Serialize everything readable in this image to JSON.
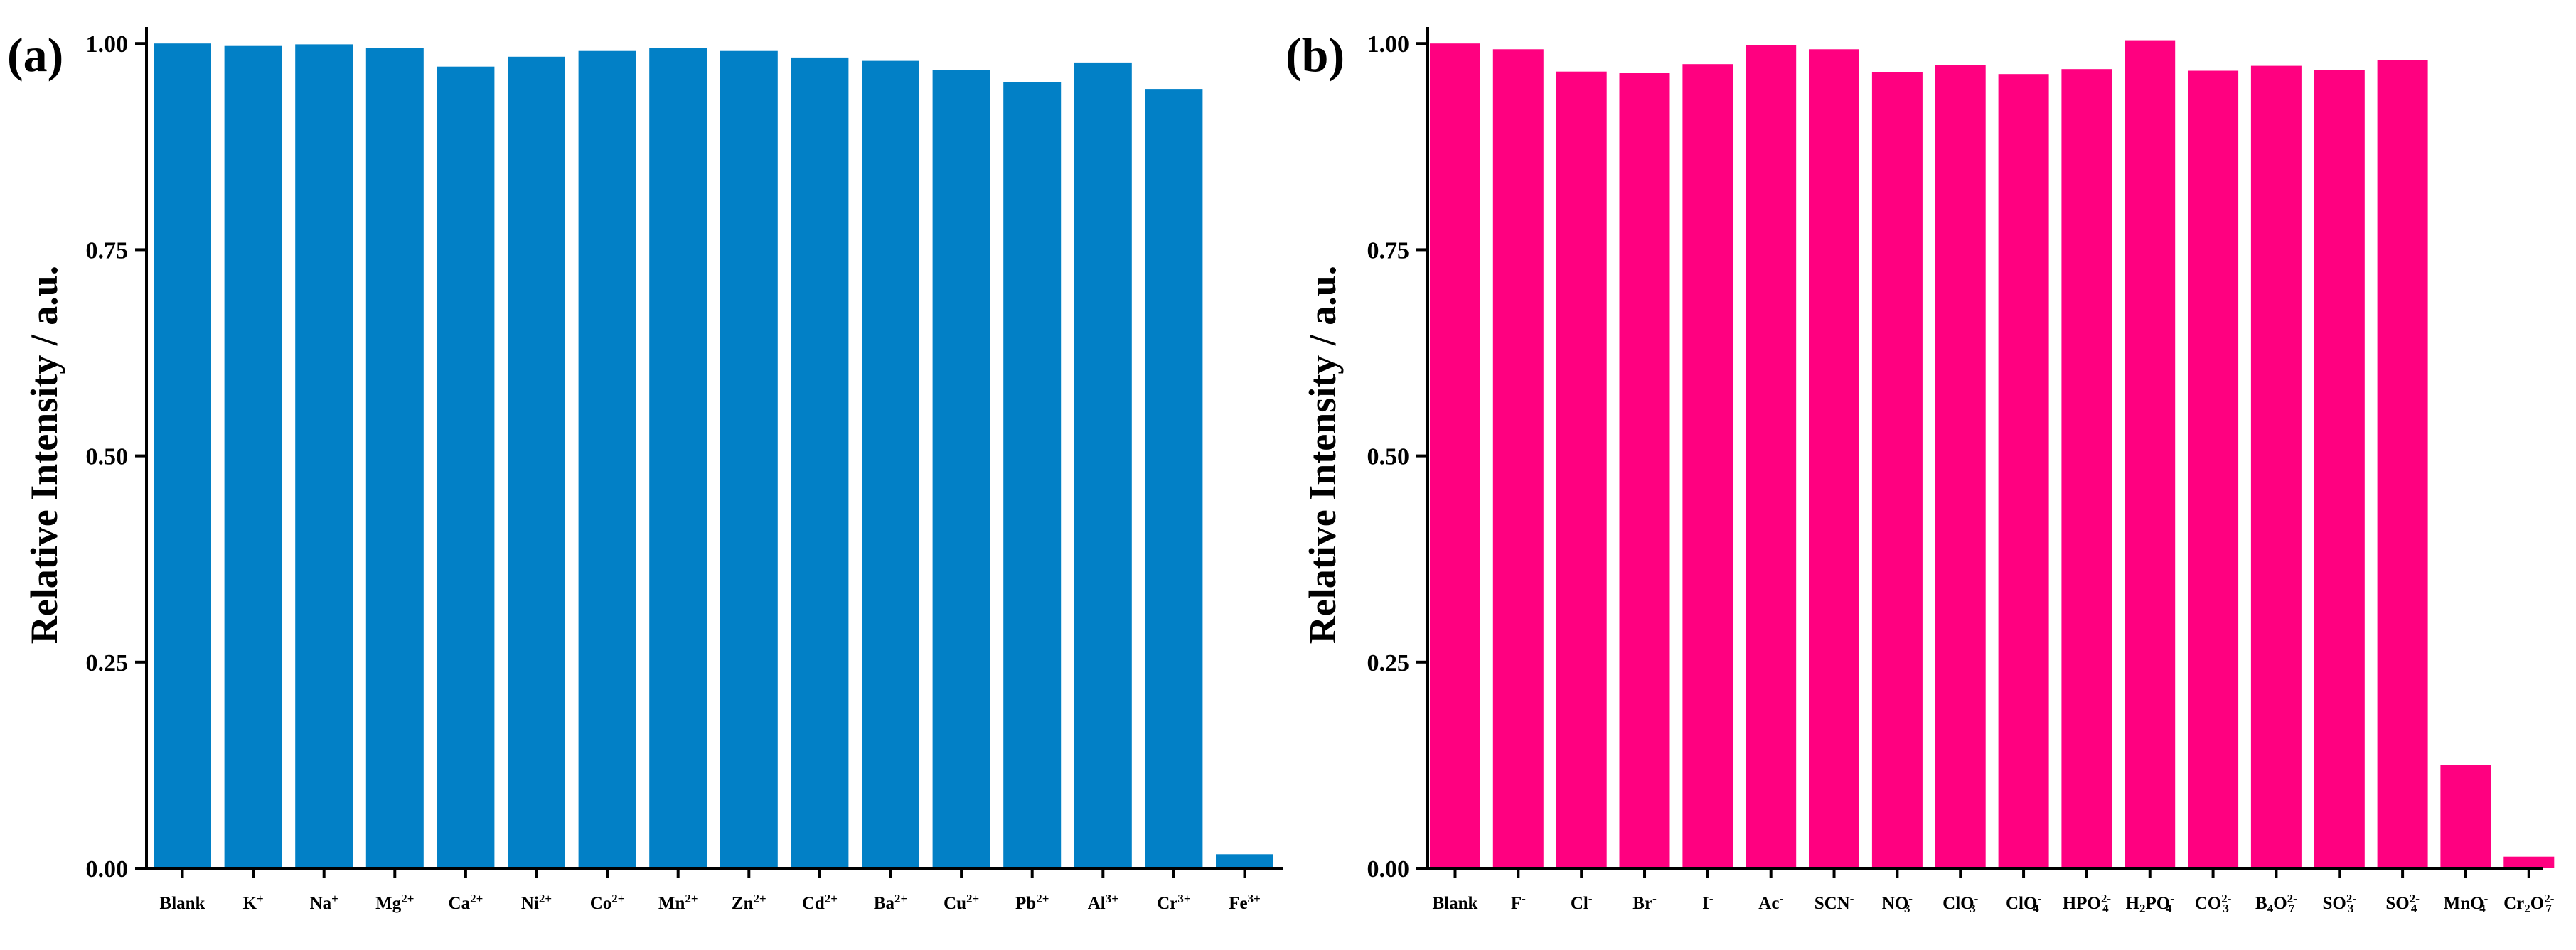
{
  "chart_data": [
    {
      "type": "bar",
      "panel_label": "(a)",
      "title": "",
      "xlabel": "",
      "ylabel": "Relative Intensity / a.u.",
      "ylim": [
        0,
        1.02
      ],
      "yticks": [
        "0.00",
        "0.25",
        "0.50",
        "0.75",
        "1.00"
      ],
      "ytick_values": [
        0,
        0.25,
        0.5,
        0.75,
        1.0
      ],
      "color": "#0280c6",
      "categories": [
        {
          "base": "Blank",
          "sup": "",
          "sub": ""
        },
        {
          "base": "K",
          "sup": "+",
          "sub": ""
        },
        {
          "base": "Na",
          "sup": "+",
          "sub": ""
        },
        {
          "base": "Mg",
          "sup": "2+",
          "sub": ""
        },
        {
          "base": "Ca",
          "sup": "2+",
          "sub": ""
        },
        {
          "base": "Ni",
          "sup": "2+",
          "sub": ""
        },
        {
          "base": "Co",
          "sup": "2+",
          "sub": ""
        },
        {
          "base": "Mn",
          "sup": "2+",
          "sub": ""
        },
        {
          "base": "Zn",
          "sup": "2+",
          "sub": ""
        },
        {
          "base": "Cd",
          "sup": "2+",
          "sub": ""
        },
        {
          "base": "Ba",
          "sup": "2+",
          "sub": ""
        },
        {
          "base": "Cu",
          "sup": "2+",
          "sub": ""
        },
        {
          "base": "Pb",
          "sup": "2+",
          "sub": ""
        },
        {
          "base": "Al",
          "sup": "3+",
          "sub": ""
        },
        {
          "base": "Cr",
          "sup": "3+",
          "sub": ""
        },
        {
          "base": "Fe",
          "sup": "3+",
          "sub": ""
        }
      ],
      "values": [
        1.0,
        0.997,
        0.999,
        0.995,
        0.972,
        0.984,
        0.991,
        0.995,
        0.991,
        0.983,
        0.979,
        0.968,
        0.953,
        0.977,
        0.945,
        0.017
      ]
    },
    {
      "type": "bar",
      "panel_label": "(b)",
      "title": "",
      "xlabel": "",
      "ylabel": "Relative Intensity / a.u.",
      "ylim": [
        0,
        1.02
      ],
      "yticks": [
        "0.00",
        "0.25",
        "0.50",
        "0.75",
        "1.00"
      ],
      "ytick_values": [
        0,
        0.25,
        0.5,
        0.75,
        1.0
      ],
      "color": "#ff0080",
      "categories": [
        {
          "base": "Blank",
          "sup": "",
          "sub": ""
        },
        {
          "base": "F",
          "sup": "-",
          "sub": ""
        },
        {
          "base": "Cl",
          "sup": "-",
          "sub": ""
        },
        {
          "base": "Br",
          "sup": "-",
          "sub": ""
        },
        {
          "base": "I",
          "sup": "-",
          "sub": ""
        },
        {
          "base": "Ac",
          "sup": "-",
          "sub": ""
        },
        {
          "base": "SCN",
          "sup": "-",
          "sub": ""
        },
        {
          "base": "NO",
          "sup": "-",
          "sub": "3"
        },
        {
          "base": "ClO",
          "sup": "-",
          "sub": "3"
        },
        {
          "base": "ClO",
          "sup": "-",
          "sub": "4"
        },
        {
          "base": "HPO",
          "sup": "2-",
          "sub": "4"
        },
        {
          "base": "H2PO",
          "sup": "-",
          "sub": "4"
        },
        {
          "base": "CO",
          "sup": "2-",
          "sub": "3"
        },
        {
          "base": "B4O",
          "sup": "2-",
          "sub": "7"
        },
        {
          "base": "SO",
          "sup": "2-",
          "sub": "3"
        },
        {
          "base": "SO",
          "sup": "2-",
          "sub": "4"
        },
        {
          "base": "MnO",
          "sup": "-",
          "sub": "4"
        },
        {
          "base": "Cr2O",
          "sup": "2-",
          "sub": "7"
        }
      ],
      "values": [
        1.0,
        0.993,
        0.966,
        0.964,
        0.975,
        0.998,
        0.993,
        0.965,
        0.974,
        0.963,
        0.969,
        1.004,
        0.967,
        0.973,
        0.968,
        0.98,
        0.125,
        0.014
      ]
    }
  ]
}
